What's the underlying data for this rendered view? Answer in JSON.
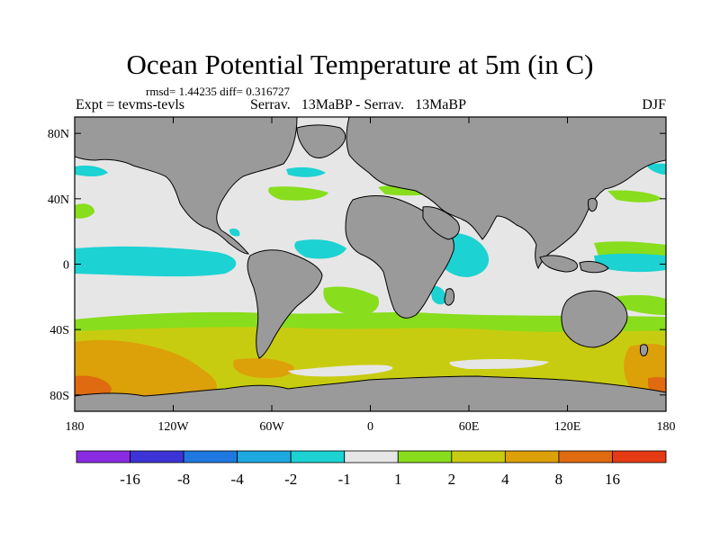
{
  "title": "Ocean Potential Temperature at 5m (in C)",
  "stats_line": "rmsd= 1.44235 diff= 0.316727",
  "experiment_label": "Expt = tevms-tevls",
  "comparison_label": "Serrav.   13MaBP - Serrav.   13MaBP",
  "season_label": "DJF",
  "lat_labels": [
    "80N",
    "40N",
    "0",
    "40S",
    "80S"
  ],
  "lat_values": [
    80,
    40,
    0,
    -40,
    -80
  ],
  "lon_labels": [
    "180",
    "120W",
    "60W",
    "0",
    "60E",
    "120E",
    "180"
  ],
  "lon_values": [
    -180,
    -120,
    -60,
    0,
    60,
    120,
    180
  ],
  "colorbar": {
    "colors": [
      "#8a2be2",
      "#3c34d6",
      "#1f78e0",
      "#1ea8e0",
      "#1cd2d2",
      "#e6e6e6",
      "#88dd1c",
      "#c8cc10",
      "#dca008",
      "#e06a10",
      "#e63a14"
    ],
    "labels": [
      "-16",
      "-8",
      "-4",
      "-2",
      "-1",
      "1",
      "2",
      "4",
      "8",
      "16"
    ]
  },
  "map_colors": {
    "land": "#9a9a9a",
    "neutral": "#e6e6e6",
    "cool": "#1cd2d2",
    "warm1": "#88dd1c",
    "warm2": "#c8cc10",
    "warm3": "#dca008",
    "warm4": "#e06a10"
  }
}
